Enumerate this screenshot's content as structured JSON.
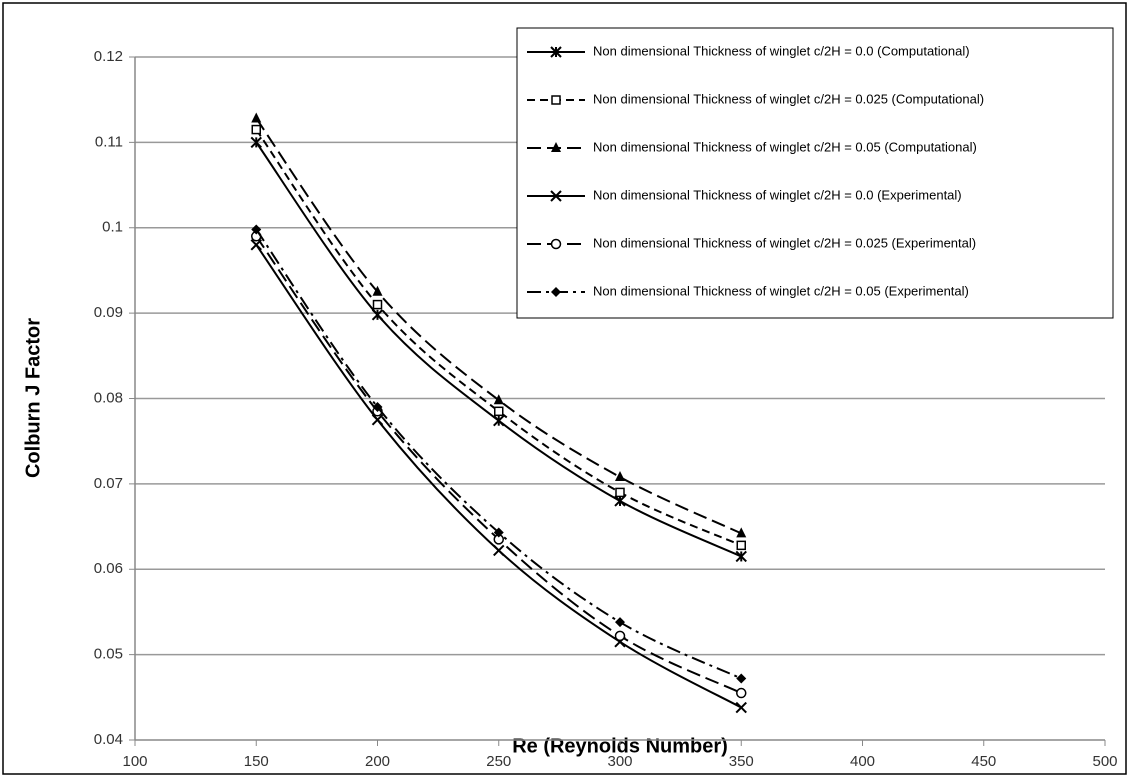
{
  "chart_data": {
    "type": "line",
    "x_label": "Re (Reynolds Number)",
    "y_label": "Colburn J Factor",
    "x": [
      150,
      200,
      250,
      300,
      350
    ],
    "series": [
      {
        "name": "Non dimensional Thickness of winglet c/2H = 0.0 (Computational)",
        "color": "#000000",
        "dash": "solid",
        "marker": "asterisk",
        "values": [
          0.11,
          0.0898,
          0.0774,
          0.068,
          0.0615
        ]
      },
      {
        "name": "Non dimensional Thickness of winglet c/2H = 0.025 (Computational)",
        "color": "#000000",
        "dash": "dashed",
        "marker": "square",
        "values": [
          0.1115,
          0.091,
          0.0785,
          0.069,
          0.0628
        ]
      },
      {
        "name": "Non dimensional Thickness of winglet c/2H = 0.05 (Computational)",
        "color": "#000000",
        "dash": "longdash",
        "marker": "triangle",
        "values": [
          0.1128,
          0.0925,
          0.0798,
          0.0708,
          0.0642
        ]
      },
      {
        "name": "Non dimensional Thickness of winglet c/2H = 0.0 (Experimental)",
        "color": "#000000",
        "dash": "solid",
        "marker": "x",
        "values": [
          0.098,
          0.0775,
          0.0622,
          0.0515,
          0.0438
        ]
      },
      {
        "name": "Non dimensional Thickness of winglet c/2H = 0.025 (Experimental)",
        "color": "#000000",
        "dash": "longdash",
        "marker": "circle",
        "values": [
          0.099,
          0.0785,
          0.0635,
          0.0522,
          0.0455
        ]
      },
      {
        "name": "Non dimensional Thickness of winglet c/2H = 0.05 (Experimental)",
        "color": "#000000",
        "dash": "dashdot",
        "marker": "diamond",
        "values": [
          0.0998,
          0.079,
          0.0643,
          0.0538,
          0.0472
        ]
      }
    ],
    "xlim": [
      100,
      500
    ],
    "xticks": [
      100,
      150,
      200,
      250,
      300,
      350,
      400,
      450,
      500
    ],
    "ylim": [
      0.04,
      0.12
    ],
    "yticks": [
      0.04,
      0.05,
      0.06,
      0.07,
      0.08,
      0.09,
      0.1,
      0.11,
      0.12
    ],
    "grid": true,
    "legend": "top-right"
  }
}
